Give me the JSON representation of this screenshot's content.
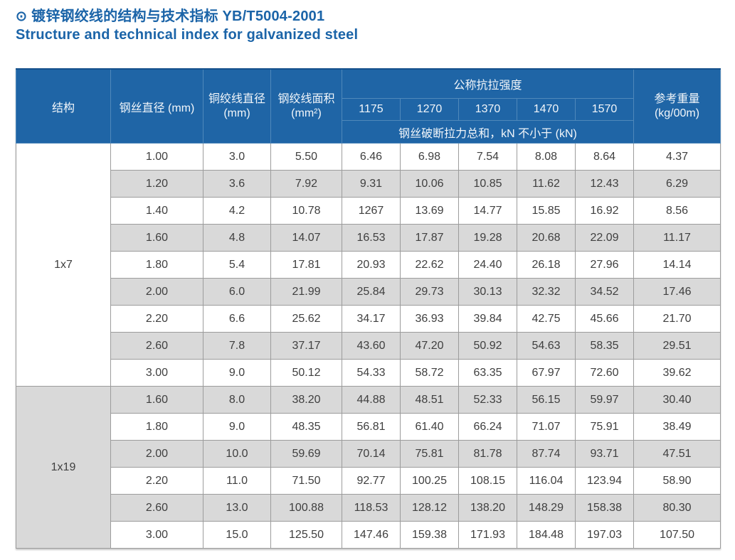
{
  "title": {
    "bullet": "⊙",
    "zh": "镀锌钢绞线的结构与技术指标 YB/T5004-2001",
    "en": "Structure and technical index for galvanized steel"
  },
  "table": {
    "header": {
      "structure": "结构",
      "wire_diameter": "钢丝直径 (mm)",
      "strand_diameter": {
        "label": "铜绞线直径",
        "unit": "(mm)"
      },
      "strand_area": {
        "label": "钢绞线面积",
        "unit": "(mm²)"
      },
      "tensile_strength_group": "公称抗拉强度",
      "grades": [
        "1175",
        "1270",
        "1370",
        "1470",
        "1570"
      ],
      "breaking_force_note": "钢丝破断拉力总和，kN 不小于 (kN)",
      "ref_weight": {
        "label": "参考重量",
        "unit": "(kg/00m)"
      }
    },
    "sections": [
      {
        "structure": "1x7",
        "rows": [
          [
            "1.00",
            "3.0",
            "5.50",
            "6.46",
            "6.98",
            "7.54",
            "8.08",
            "8.64",
            "4.37"
          ],
          [
            "1.20",
            "3.6",
            "7.92",
            "9.31",
            "10.06",
            "10.85",
            "11.62",
            "12.43",
            "6.29"
          ],
          [
            "1.40",
            "4.2",
            "10.78",
            "1267",
            "13.69",
            "14.77",
            "15.85",
            "16.92",
            "8.56"
          ],
          [
            "1.60",
            "4.8",
            "14.07",
            "16.53",
            "17.87",
            "19.28",
            "20.68",
            "22.09",
            "11.17"
          ],
          [
            "1.80",
            "5.4",
            "17.81",
            "20.93",
            "22.62",
            "24.40",
            "26.18",
            "27.96",
            "14.14"
          ],
          [
            "2.00",
            "6.0",
            "21.99",
            "25.84",
            "29.73",
            "30.13",
            "32.32",
            "34.52",
            "17.46"
          ],
          [
            "2.20",
            "6.6",
            "25.62",
            "34.17",
            "36.93",
            "39.84",
            "42.75",
            "45.66",
            "21.70"
          ],
          [
            "2.60",
            "7.8",
            "37.17",
            "43.60",
            "47.20",
            "50.92",
            "54.63",
            "58.35",
            "29.51"
          ],
          [
            "3.00",
            "9.0",
            "50.12",
            "54.33",
            "58.72",
            "63.35",
            "67.97",
            "72.60",
            "39.62"
          ]
        ]
      },
      {
        "structure": "1x19",
        "rows": [
          [
            "1.60",
            "8.0",
            "38.20",
            "44.88",
            "48.51",
            "52.33",
            "56.15",
            "59.97",
            "30.40"
          ],
          [
            "1.80",
            "9.0",
            "48.35",
            "56.81",
            "61.40",
            "66.24",
            "71.07",
            "75.91",
            "38.49"
          ],
          [
            "2.00",
            "10.0",
            "59.69",
            "70.14",
            "75.81",
            "81.78",
            "87.74",
            "93.71",
            "47.51"
          ],
          [
            "2.20",
            "11.0",
            "71.50",
            "92.77",
            "100.25",
            "108.15",
            "116.04",
            "123.94",
            "58.90"
          ],
          [
            "2.60",
            "13.0",
            "100.88",
            "118.53",
            "128.12",
            "138.20",
            "148.29",
            "158.38",
            "80.30"
          ],
          [
            "3.00",
            "15.0",
            "125.50",
            "147.46",
            "159.38",
            "171.93",
            "184.48",
            "197.03",
            "107.50"
          ]
        ]
      }
    ]
  },
  "colors": {
    "header_blue": "#1f65a6",
    "header_border_blue": "#4f88ba",
    "title_blue": "#1b64a8",
    "stripe_gray": "#d9d9d9",
    "cell_border_gray": "#9c9c9c",
    "cell_text": "#3f3f3f"
  }
}
